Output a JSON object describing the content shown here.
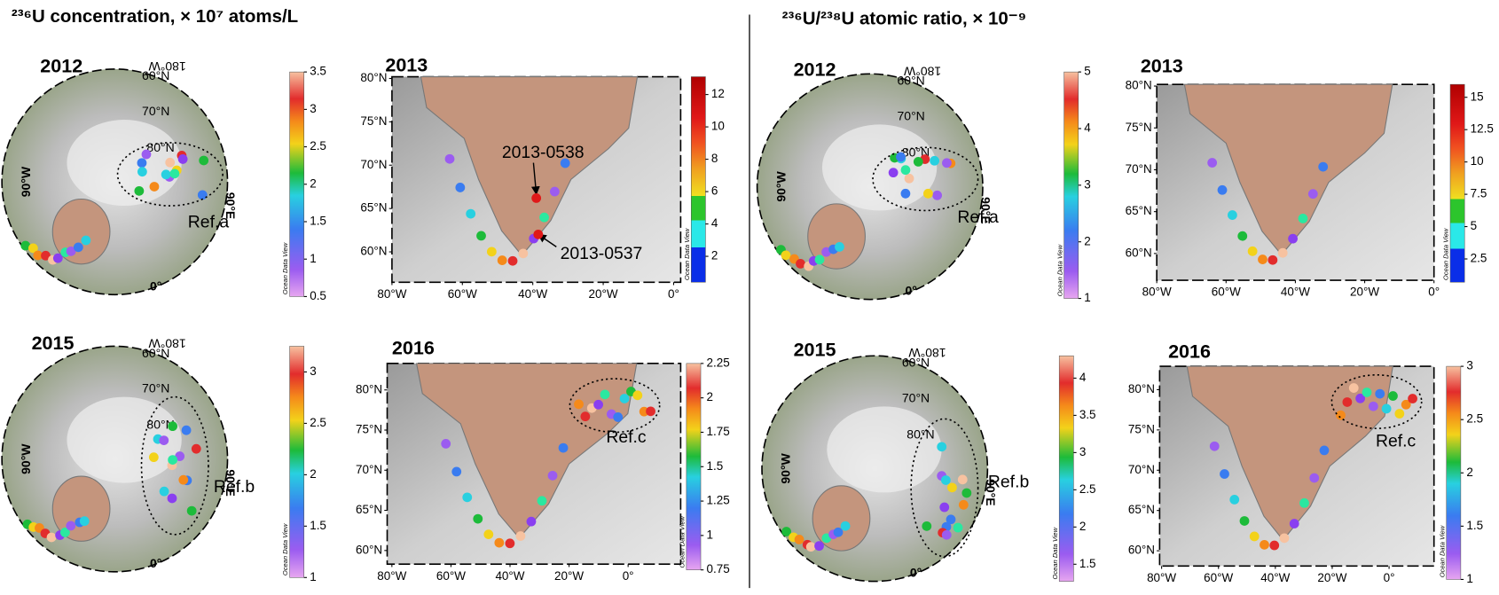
{
  "left": {
    "title": "²³⁶U concentration, × 10⁷ atoms/L",
    "panels": [
      {
        "year": "2012",
        "labels": [
          "60°N",
          "70°N",
          "80°N",
          "180°W",
          "90°W",
          "0°",
          "90°E"
        ],
        "colorbar": {
          "lim": [
            0.5,
            3.5
          ],
          "ticks": [
            3.5,
            3,
            2.5,
            2,
            1.5,
            1,
            0.5
          ]
        },
        "note": "Ocean Data View",
        "ref": "Ref.a"
      },
      {
        "year": "2013",
        "xlim": [
          -80,
          2
        ],
        "ylim": [
          56.5,
          80.2
        ],
        "xticks": [
          {
            "value": -80,
            "label": "80°W"
          },
          {
            "value": -60,
            "label": "60°W"
          },
          {
            "value": -40,
            "label": "40°W"
          },
          {
            "value": -20,
            "label": "20°W"
          },
          {
            "value": 0,
            "label": "0°"
          }
        ],
        "yticks": [
          {
            "value": 80,
            "label": "80°N"
          },
          {
            "value": 75,
            "label": "75°N"
          },
          {
            "value": 70,
            "label": "70°N"
          },
          {
            "value": 65,
            "label": "65°N"
          },
          {
            "value": 60,
            "label": "60°N"
          }
        ],
        "colorbar": {
          "lim": [
            0.4,
            13.1
          ],
          "ticks": [
            12,
            10,
            8,
            6,
            4,
            2
          ]
        },
        "note": "Ocean Data View",
        "annotations": [
          "2013-0538",
          "2013-0537"
        ]
      },
      {
        "year": "2015",
        "labels": [
          "60°N",
          "70°N",
          "80°N",
          "180°W",
          "90°W",
          "0°",
          "90°E"
        ],
        "colorbar": {
          "lim": [
            1,
            3.25
          ],
          "ticks": [
            3,
            2.5,
            2,
            1.5,
            1
          ]
        },
        "note": "Ocean Data View",
        "ref": "Ref.b"
      },
      {
        "year": "2016",
        "xlim": [
          -81.6,
          17.8
        ],
        "ylim": [
          58.3,
          83.3
        ],
        "xticks": [
          {
            "value": -80,
            "label": "80°W"
          },
          {
            "value": -60,
            "label": "60°W"
          },
          {
            "value": -40,
            "label": "40°W"
          },
          {
            "value": -20,
            "label": "20°W"
          },
          {
            "value": 0,
            "label": "0°"
          }
        ],
        "yticks": [
          {
            "value": 80,
            "label": "80°N"
          },
          {
            "value": 75,
            "label": "75°N"
          },
          {
            "value": 70,
            "label": "70°N"
          },
          {
            "value": 65,
            "label": "65°N"
          },
          {
            "value": 60,
            "label": "60°N"
          }
        ],
        "colorbar": {
          "lim": [
            0.75,
            2.25
          ],
          "ticks": [
            2.25,
            2,
            1.75,
            1.5,
            1.25,
            1,
            0.75
          ]
        },
        "note": "Ocean Data View",
        "ref": "Ref.c"
      }
    ]
  },
  "right": {
    "title": "²³⁶U/²³⁸U atomic ratio, × 10⁻⁹",
    "panels": [
      {
        "year": "2012",
        "labels": [
          "60°N",
          "70°N",
          "80°N",
          "180°W",
          "90°W",
          "0°",
          "90°E"
        ],
        "colorbar": {
          "lim": [
            1,
            5
          ],
          "ticks": [
            5,
            4,
            3,
            2,
            1
          ]
        },
        "note": "Ocean Data View",
        "ref": "Ref.a"
      },
      {
        "year": "2013",
        "xlim": [
          -80,
          0
        ],
        "ylim": [
          56.8,
          80.2
        ],
        "xticks": [
          {
            "value": -80,
            "label": "80°W"
          },
          {
            "value": -60,
            "label": "60°W"
          },
          {
            "value": -40,
            "label": "40°W"
          },
          {
            "value": -20,
            "label": "20°W"
          },
          {
            "value": 0,
            "label": "0°"
          }
        ],
        "yticks": [
          {
            "value": 80,
            "label": "80°N"
          },
          {
            "value": 75,
            "label": "75°N"
          },
          {
            "value": 70,
            "label": "70°N"
          },
          {
            "value": 65,
            "label": "65°N"
          },
          {
            "value": 60,
            "label": "60°N"
          }
        ],
        "colorbar": {
          "lim": [
            0.7,
            16
          ],
          "ticks": [
            15,
            12.5,
            10,
            7.5,
            5,
            2.5
          ]
        },
        "note": "Ocean Data View"
      },
      {
        "year": "2015",
        "labels": [
          "60°N",
          "70°N",
          "80°N",
          "180°W",
          "90°W",
          "0°",
          "90°E"
        ],
        "colorbar": {
          "lim": [
            1.27,
            4.3
          ],
          "ticks": [
            4,
            3.5,
            3,
            2.5,
            2,
            1.5
          ]
        },
        "note": "Ocean Data View",
        "ref": "Ref.b"
      },
      {
        "year": "2016",
        "xlim": [
          -80.7,
          15.8
        ],
        "ylim": [
          58.1,
          82.9
        ],
        "xticks": [
          {
            "value": -80,
            "label": "80°W"
          },
          {
            "value": -60,
            "label": "60°W"
          },
          {
            "value": -40,
            "label": "40°W"
          },
          {
            "value": -20,
            "label": "20°W"
          },
          {
            "value": 0,
            "label": "0°"
          }
        ],
        "yticks": [
          {
            "value": 80,
            "label": "80°N"
          },
          {
            "value": 75,
            "label": "75°N"
          },
          {
            "value": 70,
            "label": "70°N"
          },
          {
            "value": 65,
            "label": "65°N"
          },
          {
            "value": 60,
            "label": "60°N"
          }
        ],
        "colorbar": {
          "lim": [
            1,
            3
          ],
          "ticks": [
            3,
            2.5,
            2,
            1.5,
            1
          ]
        },
        "note": "Ocean Data View",
        "ref": "Ref.c"
      }
    ]
  }
}
